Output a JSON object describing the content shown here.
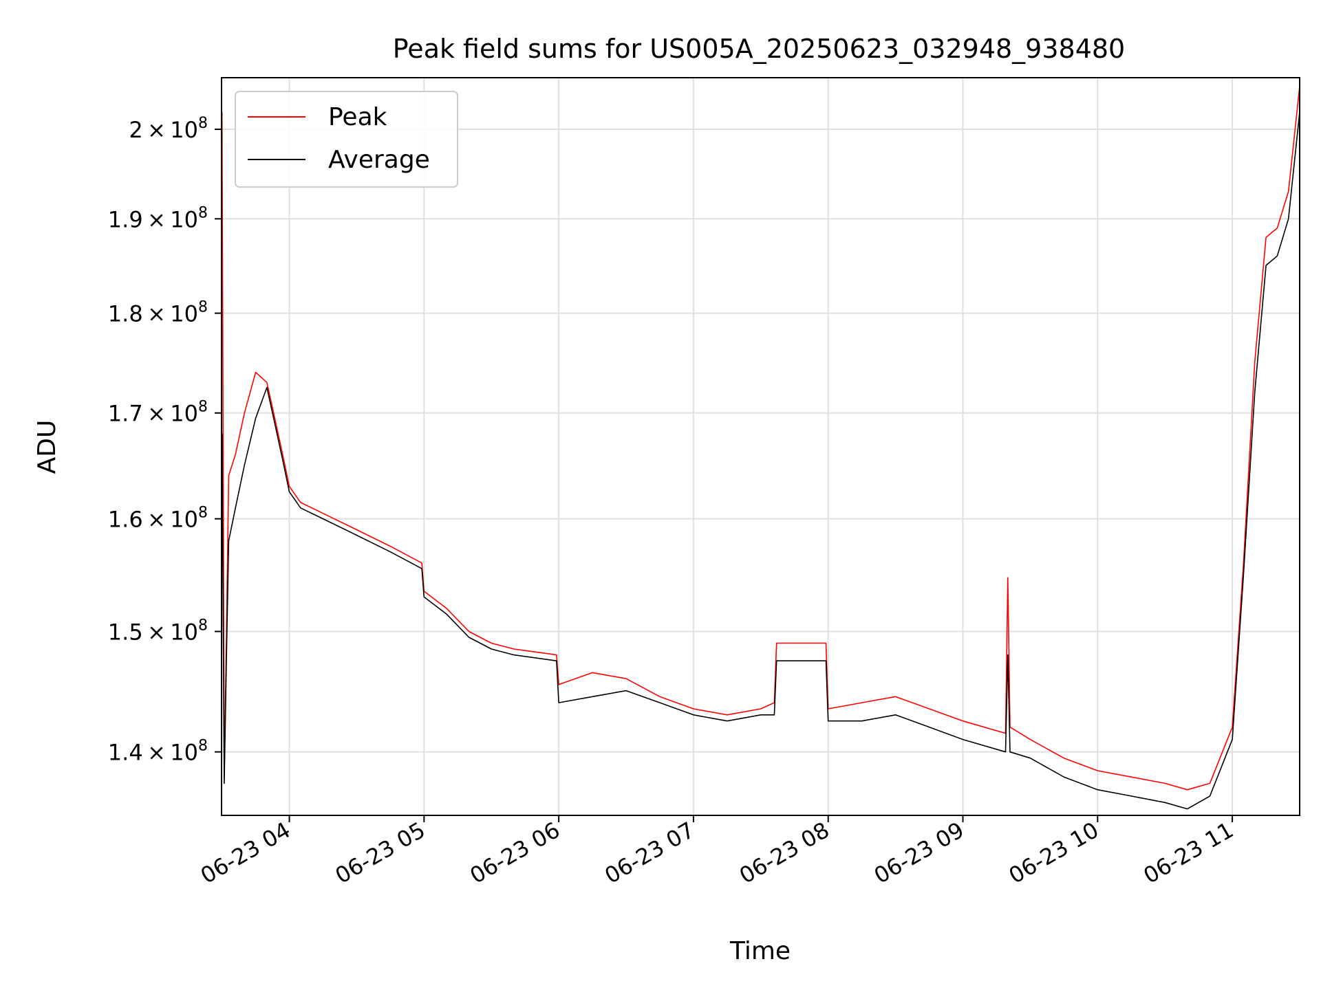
{
  "chart_data": {
    "type": "line",
    "title": "Peak field sums for US005A_20250623_032948_938480",
    "xlabel": "Time",
    "ylabel": "ADU",
    "x_range": [
      "2025-06-23 03:29:48",
      "2025-06-23 11:30:00"
    ],
    "ylim": [
      135000000,
      206000000
    ],
    "y_scale": "log",
    "grid": true,
    "legend_position": "upper-left",
    "x_ticks": [
      {
        "time": "2025-06-23 04:00",
        "label": "06-23 04"
      },
      {
        "time": "2025-06-23 05:00",
        "label": "06-23 05"
      },
      {
        "time": "2025-06-23 06:00",
        "label": "06-23 06"
      },
      {
        "time": "2025-06-23 07:00",
        "label": "06-23 07"
      },
      {
        "time": "2025-06-23 08:00",
        "label": "06-23 08"
      },
      {
        "time": "2025-06-23 09:00",
        "label": "06-23 09"
      },
      {
        "time": "2025-06-23 10:00",
        "label": "06-23 10"
      },
      {
        "time": "2025-06-23 11:00",
        "label": "06-23 11"
      }
    ],
    "y_ticks": [
      {
        "value": 140000000,
        "mantissa": "1.4",
        "base": "10",
        "exp": "8"
      },
      {
        "value": 150000000,
        "mantissa": "1.5",
        "base": "10",
        "exp": "8"
      },
      {
        "value": 160000000,
        "mantissa": "1.6",
        "base": "10",
        "exp": "8"
      },
      {
        "value": 170000000,
        "mantissa": "1.7",
        "base": "10",
        "exp": "8"
      },
      {
        "value": 180000000,
        "mantissa": "1.8",
        "base": "10",
        "exp": "8"
      },
      {
        "value": 190000000,
        "mantissa": "1.9",
        "base": "10",
        "exp": "8"
      },
      {
        "value": 200000000,
        "mantissa": "2",
        "base": "10",
        "exp": "8"
      }
    ],
    "series": [
      {
        "name": "Peak",
        "color": "#ff0000",
        "x": [
          "2025-06-23 03:30",
          "2025-06-23 03:31",
          "2025-06-23 03:32",
          "2025-06-23 03:33",
          "2025-06-23 03:36",
          "2025-06-23 03:40",
          "2025-06-23 03:45",
          "2025-06-23 03:50",
          "2025-06-23 03:53",
          "2025-06-23 03:57",
          "2025-06-23 04:00",
          "2025-06-23 04:05",
          "2025-06-23 04:15",
          "2025-06-23 04:30",
          "2025-06-23 04:45",
          "2025-06-23 04:59",
          "2025-06-23 05:00",
          "2025-06-23 05:10",
          "2025-06-23 05:20",
          "2025-06-23 05:30",
          "2025-06-23 05:40",
          "2025-06-23 05:59",
          "2025-06-23 06:00",
          "2025-06-23 06:15",
          "2025-06-23 06:30",
          "2025-06-23 06:45",
          "2025-06-23 07:00",
          "2025-06-23 07:15",
          "2025-06-23 07:30",
          "2025-06-23 07:36",
          "2025-06-23 07:37",
          "2025-06-23 07:59",
          "2025-06-23 08:00",
          "2025-06-23 08:15",
          "2025-06-23 08:30",
          "2025-06-23 08:45",
          "2025-06-23 09:00",
          "2025-06-23 09:19",
          "2025-06-23 09:20",
          "2025-06-23 09:21",
          "2025-06-23 09:30",
          "2025-06-23 09:45",
          "2025-06-23 10:00",
          "2025-06-23 10:15",
          "2025-06-23 10:30",
          "2025-06-23 10:40",
          "2025-06-23 10:50",
          "2025-06-23 11:00",
          "2025-06-23 11:05",
          "2025-06-23 11:10",
          "2025-06-23 11:15",
          "2025-06-23 11:20",
          "2025-06-23 11:25",
          "2025-06-23 11:30"
        ],
        "y": [
          202000000,
          138000000,
          150000000,
          164000000,
          166000000,
          170000000,
          174000000,
          173000000,
          170000000,
          166000000,
          163000000,
          161500000,
          160500000,
          159000000,
          157500000,
          156000000,
          153500000,
          152000000,
          150000000,
          149000000,
          148500000,
          148000000,
          145500000,
          146500000,
          146000000,
          144500000,
          143500000,
          143000000,
          143500000,
          144000000,
          149000000,
          149000000,
          143500000,
          144000000,
          144500000,
          143500000,
          142500000,
          141500000,
          154700000,
          142000000,
          141000000,
          139500000,
          138500000,
          138000000,
          137500000,
          137000000,
          137500000,
          142000000,
          156000000,
          175000000,
          188000000,
          189000000,
          193000000,
          205000000
        ]
      },
      {
        "name": "Average",
        "color": "#000000",
        "x": [
          "2025-06-23 03:30",
          "2025-06-23 03:31",
          "2025-06-23 03:32",
          "2025-06-23 03:33",
          "2025-06-23 03:36",
          "2025-06-23 03:40",
          "2025-06-23 03:45",
          "2025-06-23 03:50",
          "2025-06-23 03:53",
          "2025-06-23 03:57",
          "2025-06-23 04:00",
          "2025-06-23 04:05",
          "2025-06-23 04:15",
          "2025-06-23 04:30",
          "2025-06-23 04:45",
          "2025-06-23 04:59",
          "2025-06-23 05:00",
          "2025-06-23 05:10",
          "2025-06-23 05:20",
          "2025-06-23 05:30",
          "2025-06-23 05:40",
          "2025-06-23 05:59",
          "2025-06-23 06:00",
          "2025-06-23 06:15",
          "2025-06-23 06:30",
          "2025-06-23 06:45",
          "2025-06-23 07:00",
          "2025-06-23 07:15",
          "2025-06-23 07:30",
          "2025-06-23 07:36",
          "2025-06-23 07:37",
          "2025-06-23 07:59",
          "2025-06-23 08:00",
          "2025-06-23 08:15",
          "2025-06-23 08:30",
          "2025-06-23 08:45",
          "2025-06-23 09:00",
          "2025-06-23 09:19",
          "2025-06-23 09:20",
          "2025-06-23 09:21",
          "2025-06-23 09:30",
          "2025-06-23 09:45",
          "2025-06-23 10:00",
          "2025-06-23 10:15",
          "2025-06-23 10:30",
          "2025-06-23 10:40",
          "2025-06-23 10:50",
          "2025-06-23 11:00",
          "2025-06-23 11:05",
          "2025-06-23 11:10",
          "2025-06-23 11:15",
          "2025-06-23 11:20",
          "2025-06-23 11:25",
          "2025-06-23 11:30"
        ],
        "y": [
          168000000,
          137500000,
          148000000,
          158000000,
          161000000,
          165000000,
          169500000,
          172500000,
          169500000,
          165500000,
          162500000,
          161000000,
          160000000,
          158500000,
          157000000,
          155500000,
          153000000,
          151500000,
          149500000,
          148500000,
          148000000,
          147500000,
          144000000,
          144500000,
          145000000,
          144000000,
          143000000,
          142500000,
          143000000,
          143000000,
          147500000,
          147500000,
          142500000,
          142500000,
          143000000,
          142000000,
          141000000,
          140000000,
          148000000,
          140000000,
          139500000,
          138000000,
          137000000,
          136500000,
          136000000,
          135500000,
          136500000,
          141000000,
          155000000,
          172000000,
          185000000,
          186000000,
          190000000,
          202000000
        ]
      }
    ]
  }
}
